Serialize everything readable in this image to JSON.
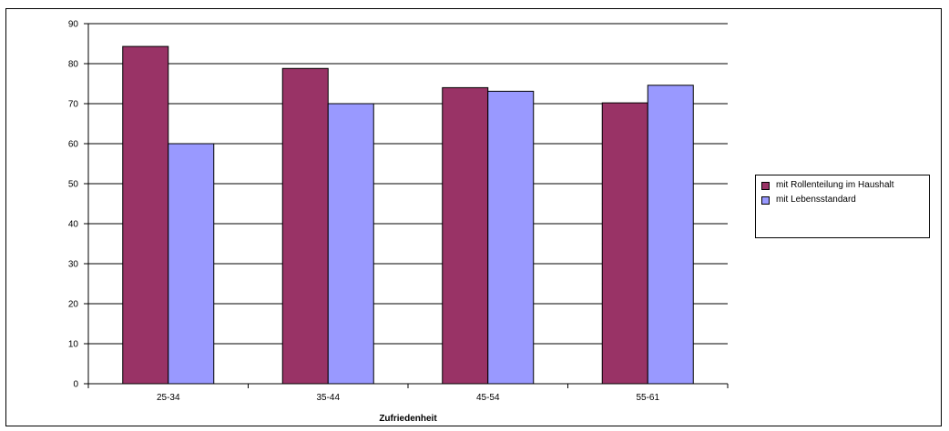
{
  "chart_data": {
    "type": "bar",
    "categories": [
      "25-34",
      "35-44",
      "45-54",
      "55-61"
    ],
    "series": [
      {
        "name": "mit Rollenteilung im Haushalt",
        "values": [
          84.3,
          78.8,
          74.0,
          70.2
        ],
        "color": "#993366"
      },
      {
        "name": "mit Lebensstandard",
        "values": [
          60.0,
          70.0,
          73.1,
          74.6
        ],
        "color": "#9999ff"
      }
    ],
    "title": "",
    "xlabel": "Zufriedenheit",
    "ylabel": "",
    "ylim": [
      0,
      90
    ],
    "yticks": [
      0,
      10,
      20,
      30,
      40,
      50,
      60,
      70,
      80,
      90
    ],
    "grid": true,
    "legend_position": "right"
  }
}
